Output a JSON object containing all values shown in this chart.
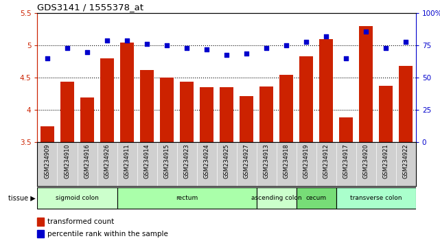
{
  "title": "GDS3141 / 1555378_at",
  "samples": [
    "GSM234909",
    "GSM234910",
    "GSM234916",
    "GSM234926",
    "GSM234911",
    "GSM234914",
    "GSM234915",
    "GSM234923",
    "GSM234924",
    "GSM234925",
    "GSM234927",
    "GSM234913",
    "GSM234918",
    "GSM234919",
    "GSM234912",
    "GSM234917",
    "GSM234920",
    "GSM234921",
    "GSM234922"
  ],
  "bar_values": [
    3.75,
    4.44,
    4.19,
    4.8,
    5.05,
    4.62,
    4.5,
    4.44,
    4.35,
    4.35,
    4.22,
    4.36,
    4.55,
    4.83,
    5.1,
    3.88,
    5.3,
    4.37,
    4.68
  ],
  "dot_values": [
    65,
    73,
    70,
    79,
    79,
    76,
    75,
    73,
    72,
    68,
    69,
    73,
    75,
    78,
    82,
    65,
    86,
    73,
    78
  ],
  "bar_color": "#cc2200",
  "dot_color": "#0000cc",
  "ylim_left": [
    3.5,
    5.5
  ],
  "ylim_right": [
    0,
    100
  ],
  "yticks_left": [
    3.5,
    4.0,
    4.5,
    5.0,
    5.5
  ],
  "ytick_labels_left": [
    "3.5",
    "4",
    "4.5",
    "5",
    "5.5"
  ],
  "yticks_right": [
    0,
    25,
    50,
    75,
    100
  ],
  "ytick_labels_right": [
    "0",
    "25",
    "50",
    "75",
    "100%"
  ],
  "hlines": [
    4.0,
    4.5,
    5.0
  ],
  "tissue_groups": [
    {
      "label": "sigmoid colon",
      "start": 0,
      "end": 4,
      "color": "#ccffcc"
    },
    {
      "label": "rectum",
      "start": 4,
      "end": 11,
      "color": "#aaffaa"
    },
    {
      "label": "ascending colon",
      "start": 11,
      "end": 13,
      "color": "#ccffcc"
    },
    {
      "label": "cecum",
      "start": 13,
      "end": 15,
      "color": "#77dd77"
    },
    {
      "label": "transverse colon",
      "start": 15,
      "end": 19,
      "color": "#aaffcc"
    }
  ],
  "legend_bar_label": "transformed count",
  "legend_dot_label": "percentile rank within the sample",
  "tissue_label": "tissue",
  "bar_width": 0.7,
  "baseline": 3.5
}
